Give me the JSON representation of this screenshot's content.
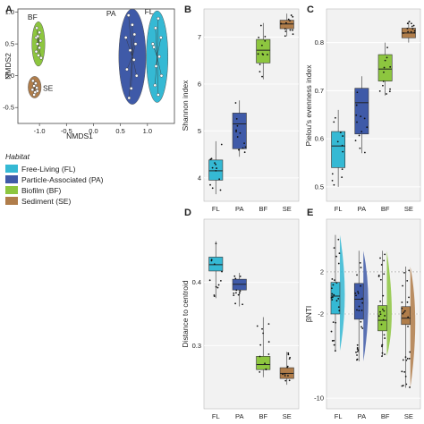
{
  "legend": {
    "title": "Habitat",
    "entries": [
      {
        "label": "Free-Living (FL)",
        "color": "#35b9d4"
      },
      {
        "label": "Particle-Associated (PA)",
        "color": "#3f5aa8"
      },
      {
        "label": "Biofilm (BF)",
        "color": "#8dc63f"
      },
      {
        "label": "Sediment (SE)",
        "color": "#b07d4a"
      }
    ]
  },
  "chart_data": [
    {
      "panel": "A",
      "type": "scatter",
      "xlabel": "NMDS1",
      "ylabel": "NMDS2",
      "xlim": [
        -1.4,
        1.5
      ],
      "ylim": [
        -0.75,
        1.05
      ],
      "xticks": [
        "-1.0",
        "-0.5",
        "0.0",
        "0.5",
        "1.0"
      ],
      "yticks": [
        "1.0",
        "0.5",
        "0.0",
        "-0.5"
      ],
      "groups": [
        {
          "label": "BF",
          "color": "#8dc63f",
          "center": [
            -1.02,
            0.5
          ],
          "rx": 0.12,
          "ry": 0.35,
          "points": [
            [
              -1.05,
              0.75
            ],
            [
              -1.0,
              0.68
            ],
            [
              -1.06,
              0.6
            ],
            [
              -0.98,
              0.55
            ],
            [
              -1.04,
              0.5
            ],
            [
              -1.0,
              0.44
            ],
            [
              -1.06,
              0.38
            ],
            [
              -1.02,
              0.32
            ],
            [
              -0.97,
              0.28
            ],
            [
              -1.03,
              0.62
            ]
          ]
        },
        {
          "label": "SE",
          "color": "#b07d4a",
          "center": [
            -1.09,
            -0.18
          ],
          "rx": 0.12,
          "ry": 0.17,
          "points": [
            [
              -1.12,
              -0.08
            ],
            [
              -1.07,
              -0.12
            ],
            [
              -1.1,
              -0.16
            ],
            [
              -1.05,
              -0.19
            ],
            [
              -1.13,
              -0.22
            ],
            [
              -1.08,
              -0.26
            ],
            [
              -1.1,
              -0.3
            ],
            [
              -1.04,
              -0.24
            ]
          ]
        },
        {
          "label": "PA",
          "color": "#3f5aa8",
          "center": [
            0.72,
            0.3
          ],
          "rx": 0.25,
          "ry": 0.75,
          "points": [
            [
              0.65,
              0.95
            ],
            [
              0.72,
              0.8
            ],
            [
              0.6,
              0.6
            ],
            [
              0.78,
              0.5
            ],
            [
              0.68,
              0.4
            ],
            [
              0.75,
              0.25
            ],
            [
              0.62,
              0.1
            ],
            [
              0.8,
              0.0
            ],
            [
              0.7,
              -0.2
            ],
            [
              0.66,
              -0.35
            ],
            [
              0.76,
              0.65
            ]
          ]
        },
        {
          "label": "FL",
          "color": "#35b9d4",
          "center": [
            1.18,
            0.3
          ],
          "rx": 0.2,
          "ry": 0.72,
          "points": [
            [
              1.2,
              0.9
            ],
            [
              1.15,
              0.75
            ],
            [
              1.25,
              0.6
            ],
            [
              1.12,
              0.45
            ],
            [
              1.22,
              0.3
            ],
            [
              1.16,
              0.15
            ],
            [
              1.26,
              0.0
            ],
            [
              1.14,
              -0.15
            ],
            [
              1.2,
              -0.3
            ],
            [
              1.1,
              0.5
            ]
          ]
        }
      ]
    },
    {
      "panel": "B",
      "type": "boxplot",
      "ylabel": "Shannon index",
      "categories": [
        "FL",
        "PA",
        "BF",
        "SE"
      ],
      "ylim": [
        3.5,
        7.6
      ],
      "yticks": [
        4,
        5,
        6,
        7
      ],
      "boxes": [
        {
          "min": 3.65,
          "q1": 3.95,
          "median": 4.15,
          "q3": 4.38,
          "max": 4.78
        },
        {
          "min": 4.45,
          "q1": 4.62,
          "median": 5.15,
          "q3": 5.38,
          "max": 5.65
        },
        {
          "min": 6.1,
          "q1": 6.45,
          "median": 6.72,
          "q3": 6.95,
          "max": 7.3
        },
        {
          "min": 7.02,
          "q1": 7.18,
          "median": 7.28,
          "q3": 7.36,
          "max": 7.5
        }
      ]
    },
    {
      "panel": "C",
      "type": "boxplot",
      "ylabel": "Pielou's evenness index",
      "categories": [
        "FL",
        "PA",
        "BF",
        "SE"
      ],
      "ylim": [
        0.47,
        0.87
      ],
      "yticks": [
        0.5,
        0.6,
        0.7,
        0.8
      ],
      "boxes": [
        {
          "min": 0.5,
          "q1": 0.54,
          "median": 0.585,
          "q3": 0.615,
          "max": 0.66
        },
        {
          "min": 0.57,
          "q1": 0.61,
          "median": 0.675,
          "q3": 0.705,
          "max": 0.73
        },
        {
          "min": 0.69,
          "q1": 0.72,
          "median": 0.745,
          "q3": 0.775,
          "max": 0.8
        },
        {
          "min": 0.8,
          "q1": 0.81,
          "median": 0.82,
          "q3": 0.83,
          "max": 0.845
        }
      ]
    },
    {
      "panel": "D",
      "type": "boxplot",
      "ylabel": "Distance to centroid",
      "categories": [
        "FL",
        "PA",
        "BF",
        "SE"
      ],
      "ylim": [
        0.2,
        0.5
      ],
      "yticks": [
        0.3,
        0.4
      ],
      "boxes": [
        {
          "min": 0.375,
          "q1": 0.418,
          "median": 0.428,
          "q3": 0.44,
          "max": 0.465
        },
        {
          "min": 0.362,
          "q1": 0.388,
          "median": 0.397,
          "q3": 0.405,
          "max": 0.415
        },
        {
          "min": 0.25,
          "q1": 0.262,
          "median": 0.27,
          "q3": 0.283,
          "max": 0.345
        },
        {
          "min": 0.238,
          "q1": 0.248,
          "median": 0.256,
          "q3": 0.265,
          "max": 0.29
        }
      ]
    },
    {
      "panel": "E",
      "type": "boxplot",
      "ylabel": "βNTI",
      "categories": [
        "FL",
        "PA",
        "BF",
        "SE"
      ],
      "ylim": [
        -11,
        7
      ],
      "yticks": [
        -10,
        -2,
        2
      ],
      "reference_lines": [
        2,
        -2
      ],
      "boxes": [
        {
          "min": -5.5,
          "q1": -2.0,
          "median": -0.3,
          "q3": 1.0,
          "max": 5.5
        },
        {
          "min": -6.5,
          "q1": -2.5,
          "median": -0.6,
          "q3": 0.9,
          "max": 4.0
        },
        {
          "min": -6.0,
          "q1": -3.6,
          "median": -2.6,
          "q3": -1.2,
          "max": 4.0
        },
        {
          "min": -9.0,
          "q1": -3.0,
          "median": -2.4,
          "q3": -1.3,
          "max": 2.5
        }
      ]
    }
  ]
}
